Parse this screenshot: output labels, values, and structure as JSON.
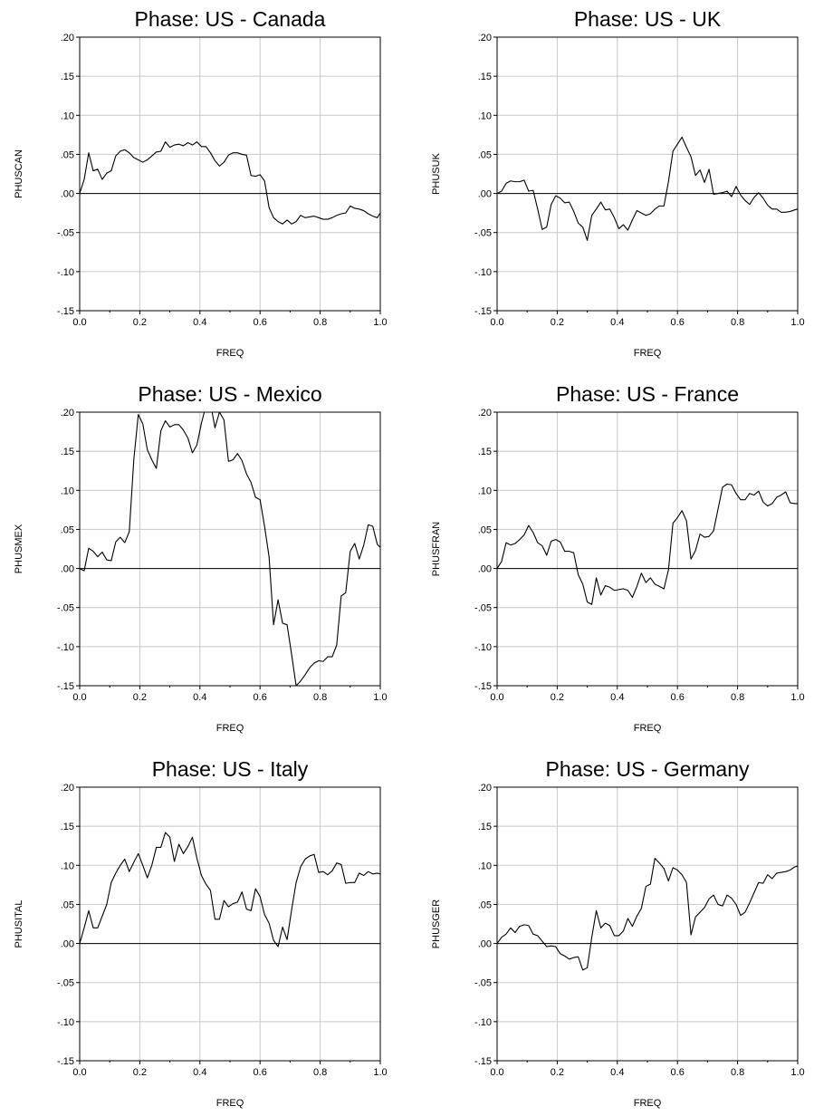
{
  "chart_data": [
    {
      "type": "line",
      "title": "Phase: US - Canada",
      "xlabel": "FREQ",
      "ylabel": "PHUSCAN",
      "xlim": [
        0,
        1
      ],
      "ylim": [
        -0.15,
        0.2
      ],
      "x_ticks": [
        "0.0",
        "0.2",
        "0.4",
        "0.6",
        "0.8",
        "1.0"
      ],
      "y_ticks": [
        ".20",
        ".15",
        ".10",
        ".05",
        ".00",
        "-.05",
        "-.10",
        "-.15"
      ],
      "grid": true,
      "series": [
        {
          "x": [
            0.0,
            0.015,
            0.03,
            0.045,
            0.06,
            0.075,
            0.09,
            0.105,
            0.12,
            0.135,
            0.15,
            0.165,
            0.18,
            0.195,
            0.21,
            0.225,
            0.24,
            0.255,
            0.27,
            0.285,
            0.3,
            0.315,
            0.33,
            0.345,
            0.36,
            0.375,
            0.39,
            0.405,
            0.42,
            0.435,
            0.45,
            0.465,
            0.48,
            0.495,
            0.51,
            0.525,
            0.54,
            0.555,
            0.57,
            0.585,
            0.6,
            0.615,
            0.63,
            0.645,
            0.66,
            0.675,
            0.69,
            0.705,
            0.72,
            0.735,
            0.75,
            0.765,
            0.78,
            0.795,
            0.81,
            0.825,
            0.84,
            0.855,
            0.87,
            0.885,
            0.9,
            0.915,
            0.93,
            0.945,
            0.96,
            0.975,
            0.99,
            1.0
          ],
          "y": [
            0.0,
            0.018,
            0.052,
            0.029,
            0.031,
            0.018,
            0.026,
            0.029,
            0.048,
            0.054,
            0.056,
            0.052,
            0.046,
            0.043,
            0.04,
            0.043,
            0.048,
            0.053,
            0.054,
            0.066,
            0.059,
            0.062,
            0.063,
            0.061,
            0.065,
            0.062,
            0.066,
            0.06,
            0.06,
            0.052,
            0.042,
            0.035,
            0.04,
            0.049,
            0.052,
            0.052,
            0.05,
            0.049,
            0.023,
            0.022,
            0.024,
            0.016,
            -0.018,
            -0.031,
            -0.036,
            -0.039,
            -0.034,
            -0.039,
            -0.036,
            -0.028,
            -0.031,
            -0.03,
            -0.029,
            -0.031,
            -0.033,
            -0.033,
            -0.031,
            -0.028,
            -0.026,
            -0.025,
            -0.016,
            -0.019,
            -0.02,
            -0.022,
            -0.026,
            -0.029,
            -0.031,
            -0.025
          ]
        }
      ]
    },
    {
      "type": "line",
      "title": "Phase: US - UK",
      "xlabel": "FREQ",
      "ylabel": "PHUSUK",
      "xlim": [
        0,
        1
      ],
      "ylim": [
        -0.15,
        0.2
      ],
      "x_ticks": [
        "0.0",
        "0.2",
        "0.4",
        "0.6",
        "0.8",
        "1.0"
      ],
      "y_ticks": [
        ".20",
        ".15",
        ".10",
        ".05",
        ".00",
        "-.05",
        "-.10",
        "-.15"
      ],
      "grid": true,
      "series": [
        {
          "x": [
            0.0,
            0.015,
            0.03,
            0.045,
            0.06,
            0.075,
            0.09,
            0.105,
            0.12,
            0.135,
            0.15,
            0.165,
            0.18,
            0.195,
            0.21,
            0.225,
            0.24,
            0.255,
            0.27,
            0.285,
            0.3,
            0.315,
            0.33,
            0.345,
            0.36,
            0.375,
            0.39,
            0.405,
            0.42,
            0.435,
            0.45,
            0.465,
            0.48,
            0.495,
            0.51,
            0.525,
            0.54,
            0.555,
            0.57,
            0.585,
            0.6,
            0.615,
            0.63,
            0.645,
            0.66,
            0.675,
            0.69,
            0.705,
            0.72,
            0.735,
            0.75,
            0.765,
            0.78,
            0.795,
            0.81,
            0.825,
            0.84,
            0.855,
            0.87,
            0.885,
            0.9,
            0.915,
            0.93,
            0.945,
            0.96,
            0.975,
            0.99,
            1.0
          ],
          "y": [
            0.0,
            0.003,
            0.013,
            0.016,
            0.015,
            0.015,
            0.017,
            0.003,
            0.004,
            -0.02,
            -0.046,
            -0.043,
            -0.014,
            -0.003,
            -0.006,
            -0.012,
            -0.011,
            -0.023,
            -0.038,
            -0.043,
            -0.06,
            -0.028,
            -0.02,
            -0.011,
            -0.021,
            -0.02,
            -0.031,
            -0.045,
            -0.04,
            -0.047,
            -0.034,
            -0.022,
            -0.025,
            -0.028,
            -0.026,
            -0.02,
            -0.016,
            -0.016,
            0.015,
            0.054,
            0.063,
            0.072,
            0.059,
            0.047,
            0.023,
            0.03,
            0.014,
            0.031,
            -0.001,
            0.0,
            0.001,
            0.003,
            -0.004,
            0.009,
            -0.002,
            -0.009,
            -0.014,
            -0.005,
            0.001,
            -0.006,
            -0.015,
            -0.02,
            -0.02,
            -0.024,
            -0.024,
            -0.023,
            -0.021,
            -0.02
          ]
        }
      ]
    },
    {
      "type": "line",
      "title": "Phase: US - Mexico",
      "xlabel": "FREQ",
      "ylabel": "PHUSMEX",
      "xlim": [
        0,
        1
      ],
      "ylim": [
        -0.15,
        0.2
      ],
      "x_ticks": [
        "0.0",
        "0.2",
        "0.4",
        "0.6",
        "0.8",
        "1.0"
      ],
      "y_ticks": [
        ".20",
        ".15",
        ".10",
        ".05",
        ".00",
        "-.05",
        "-.10",
        "-.15"
      ],
      "grid": true,
      "series": [
        {
          "x": [
            0.0,
            0.015,
            0.03,
            0.045,
            0.06,
            0.075,
            0.09,
            0.105,
            0.12,
            0.135,
            0.15,
            0.165,
            0.18,
            0.195,
            0.21,
            0.225,
            0.24,
            0.255,
            0.27,
            0.285,
            0.3,
            0.315,
            0.33,
            0.345,
            0.36,
            0.375,
            0.39,
            0.405,
            0.42,
            0.435,
            0.45,
            0.465,
            0.48,
            0.495,
            0.51,
            0.525,
            0.54,
            0.555,
            0.57,
            0.585,
            0.6,
            0.615,
            0.63,
            0.645,
            0.66,
            0.675,
            0.69,
            0.705,
            0.72,
            0.735,
            0.75,
            0.765,
            0.78,
            0.795,
            0.81,
            0.825,
            0.84,
            0.855,
            0.87,
            0.885,
            0.9,
            0.915,
            0.93,
            0.945,
            0.96,
            0.975,
            0.99,
            1.0
          ],
          "y": [
            0.0,
            -0.003,
            0.026,
            0.022,
            0.015,
            0.021,
            0.011,
            0.01,
            0.034,
            0.04,
            0.033,
            0.047,
            0.139,
            0.197,
            0.185,
            0.152,
            0.139,
            0.128,
            0.176,
            0.189,
            0.181,
            0.184,
            0.184,
            0.177,
            0.167,
            0.148,
            0.158,
            0.186,
            0.208,
            0.212,
            0.18,
            0.2,
            0.19,
            0.137,
            0.139,
            0.147,
            0.138,
            0.121,
            0.11,
            0.091,
            0.088,
            0.054,
            0.015,
            -0.072,
            -0.04,
            -0.07,
            -0.072,
            -0.11,
            -0.15,
            -0.144,
            -0.136,
            -0.127,
            -0.121,
            -0.118,
            -0.119,
            -0.113,
            -0.113,
            -0.098,
            -0.035,
            -0.031,
            0.022,
            0.032,
            0.012,
            0.03,
            0.056,
            0.054,
            0.031,
            0.027
          ]
        }
      ]
    },
    {
      "type": "line",
      "title": "Phase: US - France",
      "xlabel": "FREQ",
      "ylabel": "PHUSFRAN",
      "xlim": [
        0,
        1
      ],
      "ylim": [
        -0.15,
        0.2
      ],
      "x_ticks": [
        "0.0",
        "0.2",
        "0.4",
        "0.6",
        "0.8",
        "1.0"
      ],
      "y_ticks": [
        ".20",
        ".15",
        ".10",
        ".05",
        ".00",
        "-.05",
        "-.10",
        "-.15"
      ],
      "grid": true,
      "series": [
        {
          "x": [
            0.0,
            0.015,
            0.03,
            0.045,
            0.06,
            0.075,
            0.09,
            0.105,
            0.12,
            0.135,
            0.15,
            0.165,
            0.18,
            0.195,
            0.21,
            0.225,
            0.24,
            0.255,
            0.27,
            0.285,
            0.3,
            0.315,
            0.33,
            0.345,
            0.36,
            0.375,
            0.39,
            0.405,
            0.42,
            0.435,
            0.45,
            0.465,
            0.48,
            0.495,
            0.51,
            0.525,
            0.54,
            0.555,
            0.57,
            0.585,
            0.6,
            0.615,
            0.63,
            0.645,
            0.66,
            0.675,
            0.69,
            0.705,
            0.72,
            0.735,
            0.75,
            0.765,
            0.78,
            0.795,
            0.81,
            0.825,
            0.84,
            0.855,
            0.87,
            0.885,
            0.9,
            0.915,
            0.93,
            0.945,
            0.96,
            0.975,
            0.99,
            1.0
          ],
          "y": [
            0.0,
            0.009,
            0.033,
            0.03,
            0.032,
            0.037,
            0.043,
            0.055,
            0.046,
            0.033,
            0.029,
            0.017,
            0.035,
            0.037,
            0.034,
            0.022,
            0.022,
            0.02,
            -0.008,
            -0.02,
            -0.043,
            -0.046,
            -0.012,
            -0.034,
            -0.022,
            -0.024,
            -0.028,
            -0.027,
            -0.026,
            -0.028,
            -0.037,
            -0.023,
            -0.006,
            -0.018,
            -0.012,
            -0.02,
            -0.023,
            -0.026,
            -0.002,
            0.058,
            0.065,
            0.074,
            0.061,
            0.012,
            0.023,
            0.044,
            0.04,
            0.041,
            0.048,
            0.076,
            0.104,
            0.108,
            0.107,
            0.096,
            0.088,
            0.088,
            0.096,
            0.094,
            0.099,
            0.085,
            0.08,
            0.083,
            0.091,
            0.094,
            0.098,
            0.084,
            0.083,
            0.083
          ]
        }
      ]
    },
    {
      "type": "line",
      "title": "Phase: US - Italy",
      "xlabel": "FREQ",
      "ylabel": "PHUSITAL",
      "xlim": [
        0,
        1
      ],
      "ylim": [
        -0.15,
        0.2
      ],
      "x_ticks": [
        "0.0",
        "0.2",
        "0.4",
        "0.6",
        "0.8",
        "1.0"
      ],
      "y_ticks": [
        ".20",
        ".15",
        ".10",
        ".05",
        ".00",
        "-.05",
        "-.10",
        "-.15"
      ],
      "grid": true,
      "series": [
        {
          "x": [
            0.0,
            0.015,
            0.03,
            0.045,
            0.06,
            0.075,
            0.09,
            0.105,
            0.12,
            0.135,
            0.15,
            0.165,
            0.18,
            0.195,
            0.21,
            0.225,
            0.24,
            0.255,
            0.27,
            0.285,
            0.3,
            0.315,
            0.33,
            0.345,
            0.36,
            0.375,
            0.39,
            0.405,
            0.42,
            0.435,
            0.45,
            0.465,
            0.48,
            0.495,
            0.51,
            0.525,
            0.54,
            0.555,
            0.57,
            0.585,
            0.6,
            0.615,
            0.63,
            0.645,
            0.66,
            0.675,
            0.69,
            0.705,
            0.72,
            0.735,
            0.75,
            0.765,
            0.78,
            0.795,
            0.81,
            0.825,
            0.84,
            0.855,
            0.87,
            0.885,
            0.9,
            0.915,
            0.93,
            0.945,
            0.96,
            0.975,
            0.99,
            1.0
          ],
          "y": [
            0.0,
            0.02,
            0.042,
            0.02,
            0.02,
            0.035,
            0.05,
            0.078,
            0.09,
            0.1,
            0.108,
            0.092,
            0.104,
            0.115,
            0.1,
            0.084,
            0.1,
            0.123,
            0.123,
            0.142,
            0.136,
            0.105,
            0.127,
            0.115,
            0.124,
            0.136,
            0.109,
            0.087,
            0.076,
            0.068,
            0.031,
            0.031,
            0.055,
            0.047,
            0.051,
            0.053,
            0.066,
            0.044,
            0.042,
            0.07,
            0.06,
            0.037,
            0.026,
            0.004,
            -0.004,
            0.021,
            0.005,
            0.043,
            0.078,
            0.098,
            0.108,
            0.112,
            0.114,
            0.091,
            0.092,
            0.088,
            0.093,
            0.103,
            0.101,
            0.077,
            0.078,
            0.078,
            0.09,
            0.087,
            0.092,
            0.089,
            0.09,
            0.089
          ]
        }
      ]
    },
    {
      "type": "line",
      "title": "Phase: US - Germany",
      "xlabel": "FREQ",
      "ylabel": "PHUSGER",
      "xlim": [
        0,
        1
      ],
      "ylim": [
        -0.15,
        0.2
      ],
      "x_ticks": [
        "0.0",
        "0.2",
        "0.4",
        "0.6",
        "0.8",
        "1.0"
      ],
      "y_ticks": [
        ".20",
        ".15",
        ".10",
        ".05",
        ".00",
        "-.05",
        "-.10",
        "-.15"
      ],
      "grid": true,
      "series": [
        {
          "x": [
            0.0,
            0.015,
            0.03,
            0.045,
            0.06,
            0.075,
            0.09,
            0.105,
            0.12,
            0.135,
            0.15,
            0.165,
            0.18,
            0.195,
            0.21,
            0.225,
            0.24,
            0.255,
            0.27,
            0.285,
            0.3,
            0.315,
            0.33,
            0.345,
            0.36,
            0.375,
            0.39,
            0.405,
            0.42,
            0.435,
            0.45,
            0.465,
            0.48,
            0.495,
            0.51,
            0.525,
            0.54,
            0.555,
            0.57,
            0.585,
            0.6,
            0.615,
            0.63,
            0.645,
            0.66,
            0.675,
            0.69,
            0.705,
            0.72,
            0.735,
            0.75,
            0.765,
            0.78,
            0.795,
            0.81,
            0.825,
            0.84,
            0.855,
            0.87,
            0.885,
            0.9,
            0.915,
            0.93,
            0.945,
            0.96,
            0.975,
            0.99,
            1.0
          ],
          "y": [
            0.0,
            0.008,
            0.012,
            0.02,
            0.014,
            0.022,
            0.024,
            0.023,
            0.012,
            0.01,
            0.003,
            -0.004,
            -0.003,
            -0.004,
            -0.013,
            -0.016,
            -0.02,
            -0.018,
            -0.017,
            -0.034,
            -0.031,
            0.008,
            0.042,
            0.02,
            0.026,
            0.023,
            0.01,
            0.01,
            0.016,
            0.032,
            0.022,
            0.035,
            0.045,
            0.073,
            0.076,
            0.109,
            0.103,
            0.096,
            0.08,
            0.097,
            0.094,
            0.088,
            0.078,
            0.011,
            0.034,
            0.04,
            0.046,
            0.057,
            0.062,
            0.05,
            0.048,
            0.062,
            0.058,
            0.05,
            0.036,
            0.04,
            0.052,
            0.065,
            0.078,
            0.077,
            0.088,
            0.083,
            0.09,
            0.091,
            0.092,
            0.094,
            0.098,
            0.099
          ]
        }
      ]
    }
  ]
}
